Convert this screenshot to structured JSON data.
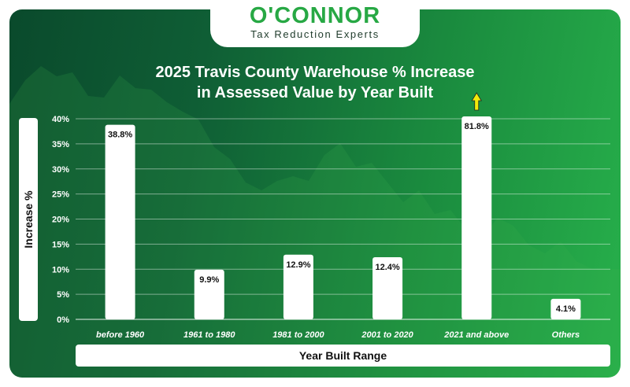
{
  "brand": {
    "name": "O'CONNOR",
    "tagline": "Tax Reduction Experts"
  },
  "colors": {
    "accent": "#27a844",
    "bar": "#ffffff",
    "arrow": "#f2ea0a",
    "bg_dark": "#0a4a2c",
    "bg_light": "#27b04b"
  },
  "chart_data": {
    "type": "bar",
    "title_lines": [
      "2025 Travis County Warehouse % Increase",
      "in Assessed Value by Year Built"
    ],
    "xlabel": "Year Built Range",
    "ylabel": "Increase %",
    "categories": [
      "before 1960",
      "1961 to 1980",
      "1981 to 2000",
      "2001 to 2020",
      "2021 and above",
      "Others"
    ],
    "values": [
      38.8,
      9.9,
      12.9,
      12.4,
      81.8,
      4.1
    ],
    "value_labels": [
      "38.8%",
      "9.9%",
      "12.9%",
      "12.4%",
      "81.8%",
      "4.1%"
    ],
    "y_ticks": [
      0,
      5,
      10,
      15,
      20,
      25,
      30,
      35,
      40
    ],
    "y_tick_labels": [
      "0%",
      "5%",
      "10%",
      "15%",
      "20%",
      "25%",
      "30%",
      "35%",
      "40%"
    ],
    "ylim": [
      0,
      40
    ],
    "grid": true,
    "legend": "none",
    "clipped_bar_indicator": "up-arrow",
    "clipped_bar_index": 4
  }
}
